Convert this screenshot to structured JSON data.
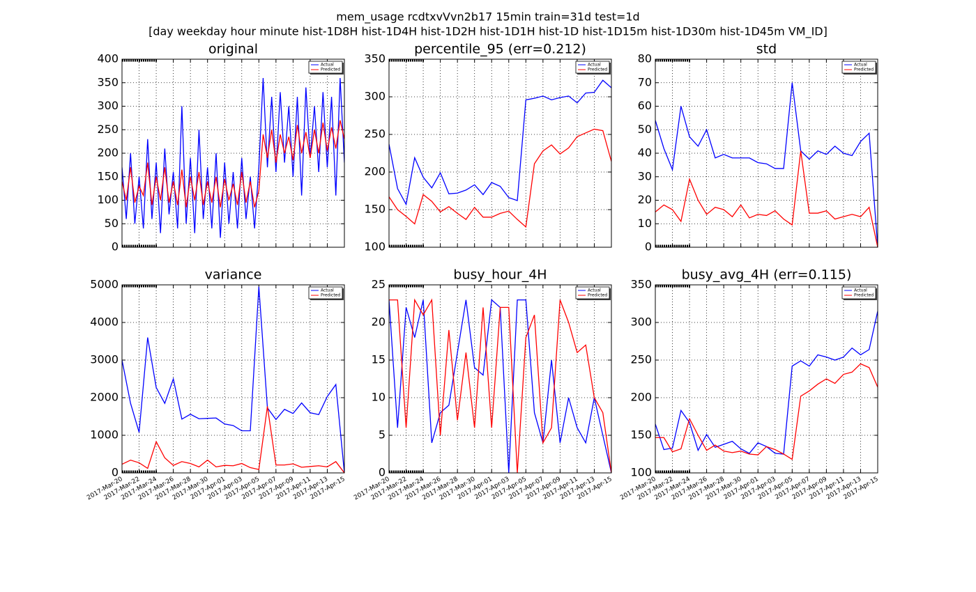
{
  "suptitle": [
    "mem_usage rcdtxvVvn2b17 15min train=31d test=1d",
    "[day weekday hour minute hist-1D8H hist-1D4H hist-1D2H hist-1D1H hist-1D hist-1D15m hist-1D30m hist-1D45m VM_ID]"
  ],
  "chart_data": [
    {
      "type": "line",
      "title": "original",
      "grid": true,
      "legend": "upper right",
      "show_xtick_labels": false,
      "x": [
        0,
        0.5,
        1,
        1.5,
        2,
        2.5,
        3,
        3.5,
        4,
        4.5,
        5,
        5.5,
        6,
        6.5,
        7,
        7.5,
        8,
        8.5,
        9,
        9.5,
        10,
        10.5,
        11,
        11.5,
        12,
        12.5,
        13,
        13.5,
        14,
        14.5,
        15,
        15.5,
        16,
        16.5,
        17,
        17.5,
        18,
        18.5,
        19,
        19.5,
        20,
        20.5,
        21,
        21.5,
        22,
        22.5,
        23,
        23.5,
        24,
        24.5,
        25,
        25.5,
        26
      ],
      "xlim": [
        0,
        26
      ],
      "xticks": [
        0,
        2,
        4,
        6,
        8,
        10,
        12,
        14,
        16,
        18,
        20,
        22,
        24,
        26
      ],
      "ylim": [
        0,
        400
      ],
      "yticks": [
        0,
        50,
        100,
        150,
        200,
        250,
        300,
        350,
        400
      ],
      "series": [
        {
          "name": "Actual",
          "color": "#0000ff",
          "values": [
            170,
            60,
            200,
            50,
            150,
            40,
            230,
            60,
            180,
            30,
            210,
            70,
            160,
            40,
            300,
            50,
            190,
            30,
            250,
            60,
            170,
            40,
            200,
            20,
            180,
            50,
            160,
            40,
            190,
            60,
            150,
            40,
            170,
            360,
            170,
            320,
            160,
            330,
            180,
            300,
            150,
            320,
            110,
            340,
            190,
            300,
            160,
            330,
            170,
            320,
            110,
            360,
            180
          ]
        },
        {
          "name": "Predicted",
          "color": "#ff0000",
          "values": [
            140,
            100,
            170,
            95,
            130,
            110,
            180,
            90,
            150,
            100,
            170,
            95,
            140,
            90,
            165,
            85,
            150,
            100,
            160,
            90,
            140,
            95,
            150,
            85,
            145,
            100,
            135,
            90,
            160,
            95,
            140,
            85,
            120,
            240,
            190,
            250,
            180,
            240,
            200,
            235,
            185,
            260,
            200,
            245,
            190,
            250,
            200,
            265,
            205,
            255,
            210,
            270,
            230
          ]
        }
      ]
    },
    {
      "type": "line",
      "title": "percentile_95 (err=0.212)",
      "grid": true,
      "legend": "upper right",
      "show_xtick_labels": false,
      "x": [
        0,
        1,
        2,
        3,
        4,
        5,
        6,
        7,
        8,
        9,
        10,
        11,
        12,
        13,
        14,
        15,
        16,
        17,
        18,
        19,
        20,
        21,
        22,
        23,
        24,
        25,
        26
      ],
      "xlim": [
        0,
        26
      ],
      "xticks": [
        0,
        2,
        4,
        6,
        8,
        10,
        12,
        14,
        16,
        18,
        20,
        22,
        24,
        26
      ],
      "ylim": [
        100,
        350
      ],
      "yticks": [
        100,
        150,
        200,
        250,
        300,
        350
      ],
      "series": [
        {
          "name": "Actual",
          "color": "#0000ff",
          "values": [
            237,
            178,
            157,
            219,
            193,
            179,
            199,
            171,
            172,
            176,
            183,
            170,
            186,
            181,
            166,
            162,
            296,
            298,
            301,
            296,
            299,
            301,
            292,
            305,
            306,
            322,
            312
          ]
        },
        {
          "name": "Predicted",
          "color": "#ff0000",
          "values": [
            167,
            150,
            141,
            131,
            170,
            161,
            147,
            154,
            145,
            137,
            153,
            140,
            140,
            145,
            148,
            137,
            127,
            211,
            228,
            236,
            224,
            232,
            247,
            252,
            257,
            255,
            214
          ]
        }
      ]
    },
    {
      "type": "line",
      "title": "std",
      "grid": true,
      "legend": "upper right",
      "show_xtick_labels": false,
      "x": [
        0,
        1,
        2,
        3,
        4,
        5,
        6,
        7,
        8,
        9,
        10,
        11,
        12,
        13,
        14,
        15,
        16,
        17,
        18,
        19,
        20,
        21,
        22,
        23,
        24,
        25,
        26
      ],
      "xlim": [
        0,
        26
      ],
      "xticks": [
        0,
        2,
        4,
        6,
        8,
        10,
        12,
        14,
        16,
        18,
        20,
        22,
        24,
        26
      ],
      "ylim": [
        0,
        80
      ],
      "yticks": [
        0,
        10,
        20,
        30,
        40,
        50,
        60,
        70,
        80
      ],
      "series": [
        {
          "name": "Actual",
          "color": "#0000ff",
          "values": [
            54,
            42,
            33,
            60,
            47,
            43,
            50,
            38,
            39.5,
            38,
            38,
            38,
            36,
            35.5,
            33.5,
            33.5,
            70,
            41,
            37.5,
            41,
            39.5,
            43,
            40,
            39,
            45,
            48.5,
            0
          ]
        },
        {
          "name": "Predicted",
          "color": "#ff0000",
          "values": [
            15,
            18,
            16,
            11,
            29,
            20,
            14,
            17,
            16,
            13,
            18,
            12.5,
            14,
            13.5,
            15.5,
            12,
            9.5,
            41,
            14.5,
            14.5,
            15.5,
            12,
            13,
            14,
            13,
            17,
            0
          ]
        }
      ]
    },
    {
      "type": "line",
      "title": "variance",
      "grid": true,
      "legend": "upper right",
      "show_xtick_labels": true,
      "x": [
        0,
        1,
        2,
        3,
        4,
        5,
        6,
        7,
        8,
        9,
        10,
        11,
        12,
        13,
        14,
        15,
        16,
        17,
        18,
        19,
        20,
        21,
        22,
        23,
        24,
        25,
        26
      ],
      "xlim": [
        0,
        26
      ],
      "xticks": [
        {
          "value": 0,
          "label": "2017-Mar-20"
        },
        {
          "value": 2,
          "label": "2017-Mar-22"
        },
        {
          "value": 4,
          "label": "2017-Mar-24"
        },
        {
          "value": 6,
          "label": "2017-Mar-26"
        },
        {
          "value": 8,
          "label": "2017-Mar-28"
        },
        {
          "value": 10,
          "label": "2017-Mar-30"
        },
        {
          "value": 12,
          "label": "2017-Apr-01"
        },
        {
          "value": 14,
          "label": "2017-Apr-03"
        },
        {
          "value": 16,
          "label": "2017-Apr-05"
        },
        {
          "value": 18,
          "label": "2017-Apr-07"
        },
        {
          "value": 20,
          "label": "2017-Apr-09"
        },
        {
          "value": 22,
          "label": "2017-Apr-11"
        },
        {
          "value": 24,
          "label": "2017-Apr-13"
        },
        {
          "value": 26,
          "label": "2017-Apr-15"
        }
      ],
      "ylim": [
        0,
        5000
      ],
      "yticks": [
        0,
        1000,
        2000,
        3000,
        4000,
        5000
      ],
      "series": [
        {
          "name": "Actual",
          "color": "#0000ff",
          "values": [
            3000,
            1850,
            1080,
            3600,
            2270,
            1850,
            2500,
            1430,
            1560,
            1440,
            1450,
            1460,
            1300,
            1260,
            1120,
            1120,
            4950,
            1730,
            1420,
            1690,
            1580,
            1860,
            1600,
            1550,
            2030,
            2350,
            0
          ]
        },
        {
          "name": "Predicted",
          "color": "#ff0000",
          "values": [
            230,
            340,
            270,
            120,
            830,
            400,
            200,
            300,
            250,
            160,
            340,
            160,
            200,
            190,
            250,
            140,
            90,
            1770,
            210,
            210,
            240,
            150,
            170,
            190,
            160,
            300,
            0
          ]
        }
      ]
    },
    {
      "type": "line",
      "title": "busy_hour_4H",
      "grid": true,
      "legend": "upper right",
      "show_xtick_labels": true,
      "x": [
        0,
        1,
        2,
        3,
        4,
        5,
        6,
        7,
        8,
        9,
        10,
        11,
        12,
        13,
        14,
        15,
        16,
        17,
        18,
        19,
        20,
        21,
        22,
        23,
        24,
        25,
        26
      ],
      "xlim": [
        0,
        26
      ],
      "xticks": [
        {
          "value": 0,
          "label": "2017-Mar-20"
        },
        {
          "value": 2,
          "label": "2017-Mar-22"
        },
        {
          "value": 4,
          "label": "2017-Mar-24"
        },
        {
          "value": 6,
          "label": "2017-Mar-26"
        },
        {
          "value": 8,
          "label": "2017-Mar-28"
        },
        {
          "value": 10,
          "label": "2017-Mar-30"
        },
        {
          "value": 12,
          "label": "2017-Apr-01"
        },
        {
          "value": 14,
          "label": "2017-Apr-03"
        },
        {
          "value": 16,
          "label": "2017-Apr-05"
        },
        {
          "value": 18,
          "label": "2017-Apr-07"
        },
        {
          "value": 20,
          "label": "2017-Apr-09"
        },
        {
          "value": 22,
          "label": "2017-Apr-11"
        },
        {
          "value": 24,
          "label": "2017-Apr-13"
        },
        {
          "value": 26,
          "label": "2017-Apr-15"
        }
      ],
      "ylim": [
        0,
        25
      ],
      "yticks": [
        0,
        5,
        10,
        15,
        20,
        25
      ],
      "series": [
        {
          "name": "Actual",
          "color": "#0000ff",
          "values": [
            23,
            6,
            22,
            18,
            23,
            4,
            8,
            9,
            16,
            23,
            14,
            13,
            23,
            22,
            0,
            23,
            23,
            8,
            4,
            15,
            4,
            10,
            6,
            4,
            10,
            5,
            0
          ]
        },
        {
          "name": "Predicted",
          "color": "#ff0000",
          "values": [
            23,
            23,
            6,
            23,
            21,
            23,
            5,
            19,
            7,
            16,
            6,
            22,
            6,
            22,
            22,
            0,
            18,
            21,
            4,
            6,
            23,
            20,
            16,
            17,
            10,
            8,
            0
          ]
        }
      ]
    },
    {
      "type": "line",
      "title": "busy_avg_4H (err=0.115)",
      "grid": true,
      "legend": "upper right",
      "show_xtick_labels": true,
      "x": [
        0,
        1,
        2,
        3,
        4,
        5,
        6,
        7,
        8,
        9,
        10,
        11,
        12,
        13,
        14,
        15,
        16,
        17,
        18,
        19,
        20,
        21,
        22,
        23,
        24,
        25,
        26
      ],
      "xlim": [
        0,
        26
      ],
      "xticks": [
        {
          "value": 0,
          "label": "2017-Mar-20"
        },
        {
          "value": 2,
          "label": "2017-Mar-22"
        },
        {
          "value": 4,
          "label": "2017-Mar-24"
        },
        {
          "value": 6,
          "label": "2017-Mar-26"
        },
        {
          "value": 8,
          "label": "2017-Mar-28"
        },
        {
          "value": 10,
          "label": "2017-Mar-30"
        },
        {
          "value": 12,
          "label": "2017-Apr-01"
        },
        {
          "value": 14,
          "label": "2017-Apr-03"
        },
        {
          "value": 16,
          "label": "2017-Apr-05"
        },
        {
          "value": 18,
          "label": "2017-Apr-07"
        },
        {
          "value": 20,
          "label": "2017-Apr-09"
        },
        {
          "value": 22,
          "label": "2017-Apr-11"
        },
        {
          "value": 24,
          "label": "2017-Apr-13"
        },
        {
          "value": 26,
          "label": "2017-Apr-15"
        }
      ],
      "ylim": [
        100,
        350
      ],
      "yticks": [
        100,
        150,
        200,
        250,
        300,
        350
      ],
      "series": [
        {
          "name": "Actual",
          "color": "#0000ff",
          "values": [
            165,
            131,
            133,
            183,
            167,
            130,
            151,
            134,
            138,
            142,
            132,
            126,
            140,
            135,
            126,
            125,
            242,
            249,
            242,
            257,
            254,
            250,
            254,
            266,
            257,
            264,
            315
          ]
        },
        {
          "name": "Predicted",
          "color": "#ff0000",
          "values": [
            147,
            147,
            128,
            132,
            172,
            150,
            130,
            137,
            129,
            127,
            129,
            125,
            124,
            135,
            131,
            125,
            118,
            202,
            209,
            218,
            225,
            219,
            231,
            234,
            245,
            240,
            214
          ]
        }
      ]
    }
  ]
}
